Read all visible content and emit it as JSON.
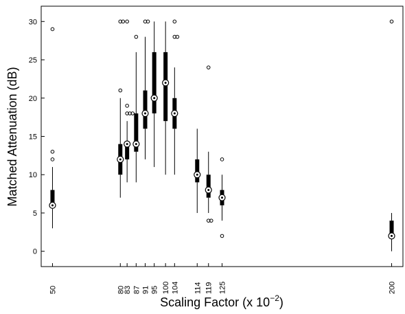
{
  "chart_data": {
    "type": "boxplot",
    "xlabel": "Scaling Factor (x 10",
    "xlabel_exponent": "−2",
    "xlabel_suffix": ")",
    "ylabel": "Matched Attenuation (dB)",
    "ylim": [
      -2,
      32
    ],
    "yticks": [
      0,
      5,
      10,
      15,
      20,
      25,
      30
    ],
    "xlim": [
      45,
      205
    ],
    "grid": false,
    "categories": [
      {
        "label": "50",
        "x": 50,
        "whisker_low": 3,
        "q1": 6,
        "median": 6,
        "q3": 8,
        "whisker_high": 11,
        "outliers": [
          12,
          13,
          29
        ]
      },
      {
        "label": "80",
        "x": 80,
        "whisker_low": 7,
        "q1": 10,
        "median": 12,
        "q3": 14,
        "whisker_high": 20,
        "outliers": [
          21,
          30,
          30
        ]
      },
      {
        "label": "83",
        "x": 83,
        "whisker_low": 9,
        "q1": 12,
        "median": 14,
        "q3": 14,
        "whisker_high": 17,
        "outliers": [
          18,
          18,
          18,
          19,
          30
        ]
      },
      {
        "label": "87",
        "x": 87,
        "whisker_low": 9,
        "q1": 13,
        "median": 14,
        "q3": 18,
        "whisker_high": 26,
        "outliers": [
          28
        ]
      },
      {
        "label": "91",
        "x": 91,
        "whisker_low": 12,
        "q1": 16,
        "median": 18,
        "q3": 21,
        "whisker_high": 28,
        "outliers": [
          30,
          30
        ]
      },
      {
        "label": "95",
        "x": 95,
        "whisker_low": 11,
        "q1": 18,
        "median": 20,
        "q3": 26,
        "whisker_high": 30,
        "outliers": []
      },
      {
        "label": "100",
        "x": 100,
        "whisker_low": 10,
        "q1": 17,
        "median": 22,
        "q3": 26,
        "whisker_high": 30,
        "outliers": []
      },
      {
        "label": "104",
        "x": 104,
        "whisker_low": 10,
        "q1": 16,
        "median": 18,
        "q3": 20,
        "whisker_high": 24,
        "outliers": [
          28,
          28,
          30
        ]
      },
      {
        "label": "114",
        "x": 114,
        "whisker_low": 5,
        "q1": 9,
        "median": 10,
        "q3": 12,
        "whisker_high": 16,
        "outliers": []
      },
      {
        "label": "119",
        "x": 119,
        "whisker_low": 5,
        "q1": 7,
        "median": 8,
        "q3": 10,
        "whisker_high": 13,
        "outliers": [
          4,
          4,
          24
        ]
      },
      {
        "label": "125",
        "x": 125,
        "whisker_low": 4,
        "q1": 6,
        "median": 7,
        "q3": 8,
        "whisker_high": 10,
        "outliers": [
          2,
          12
        ]
      },
      {
        "label": "200",
        "x": 200,
        "whisker_low": 0,
        "q1": 2,
        "median": 2,
        "q3": 4,
        "whisker_high": 5,
        "outliers": [
          30
        ]
      }
    ]
  }
}
